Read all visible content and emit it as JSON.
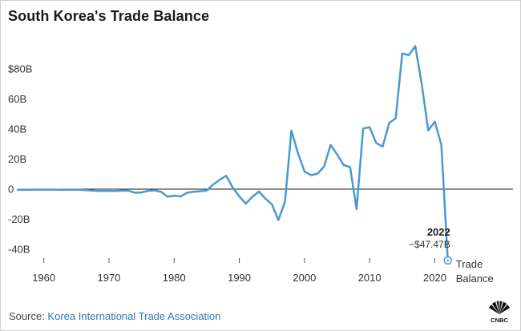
{
  "title": "South Korea's Trade Balance",
  "source": {
    "prefix": "Source: ",
    "name": "Korea International Trade Association"
  },
  "brand": {
    "logo_text": "CNBC"
  },
  "colors": {
    "line": "#4a98d3",
    "zero_line": "#1a1a1a",
    "tick_text": "#333333",
    "source_link": "#2a7ab8"
  },
  "chart_data": {
    "type": "line",
    "title": "South Korea's Trade Balance",
    "xlabel": "",
    "ylabel": "",
    "xlim": [
      1955,
      2024
    ],
    "ylim": [
      -48,
      100
    ],
    "y_ticks": [
      {
        "value": 80,
        "label": "$80B"
      },
      {
        "value": 60,
        "label": "60B"
      },
      {
        "value": 40,
        "label": "40B"
      },
      {
        "value": 20,
        "label": "20B"
      },
      {
        "value": 0,
        "label": "0"
      },
      {
        "value": -20,
        "label": "-20B"
      },
      {
        "value": -40,
        "label": "-40B"
      }
    ],
    "x_ticks": [
      {
        "value": 1960,
        "label": "1960"
      },
      {
        "value": 1970,
        "label": "1970"
      },
      {
        "value": 1980,
        "label": "1980"
      },
      {
        "value": 1990,
        "label": "1990"
      },
      {
        "value": 2000,
        "label": "2000"
      },
      {
        "value": 2010,
        "label": "2010"
      },
      {
        "value": 2020,
        "label": "2020"
      }
    ],
    "grid": false,
    "zero_line": true,
    "legend": {
      "label_line1": "Trade",
      "label_line2": "Balance",
      "placement": "bottom-right"
    },
    "annotation": {
      "year_label": "2022",
      "value_label": "−$47.47B",
      "x": 2022,
      "y": -47.47
    },
    "series": [
      {
        "name": "Trade Balance",
        "x": [
          1956,
          1957,
          1958,
          1959,
          1960,
          1961,
          1962,
          1963,
          1964,
          1965,
          1966,
          1967,
          1968,
          1969,
          1970,
          1971,
          1972,
          1973,
          1974,
          1975,
          1976,
          1977,
          1978,
          1979,
          1980,
          1981,
          1982,
          1983,
          1984,
          1985,
          1986,
          1987,
          1988,
          1989,
          1990,
          1991,
          1992,
          1993,
          1994,
          1995,
          1996,
          1997,
          1998,
          1999,
          2000,
          2001,
          2002,
          2003,
          2004,
          2005,
          2006,
          2007,
          2008,
          2009,
          2010,
          2011,
          2012,
          2013,
          2014,
          2015,
          2016,
          2017,
          2018,
          2019,
          2020,
          2021,
          2022
        ],
        "values": [
          -0.4,
          -0.4,
          -0.4,
          -0.3,
          -0.3,
          -0.3,
          -0.4,
          -0.5,
          -0.3,
          -0.3,
          -0.6,
          -0.8,
          -1.1,
          -1.2,
          -1.2,
          -1.3,
          -1.0,
          -1.0,
          -2.4,
          -2.2,
          -1.1,
          -0.8,
          -1.8,
          -5.0,
          -4.4,
          -4.8,
          -2.4,
          -1.7,
          -1.4,
          -0.9,
          3.1,
          6.3,
          8.9,
          0.9,
          -4.8,
          -9.7,
          -5.1,
          -1.6,
          -6.3,
          -10.1,
          -20.6,
          -8.5,
          39.0,
          23.9,
          11.8,
          9.3,
          10.3,
          15.0,
          29.4,
          23.2,
          16.1,
          14.6,
          -13.3,
          40.4,
          41.2,
          30.8,
          28.3,
          44.0,
          47.2,
          90.3,
          89.2,
          95.2,
          69.7,
          39.1,
          44.9,
          29.5,
          -47.47
        ]
      }
    ]
  }
}
